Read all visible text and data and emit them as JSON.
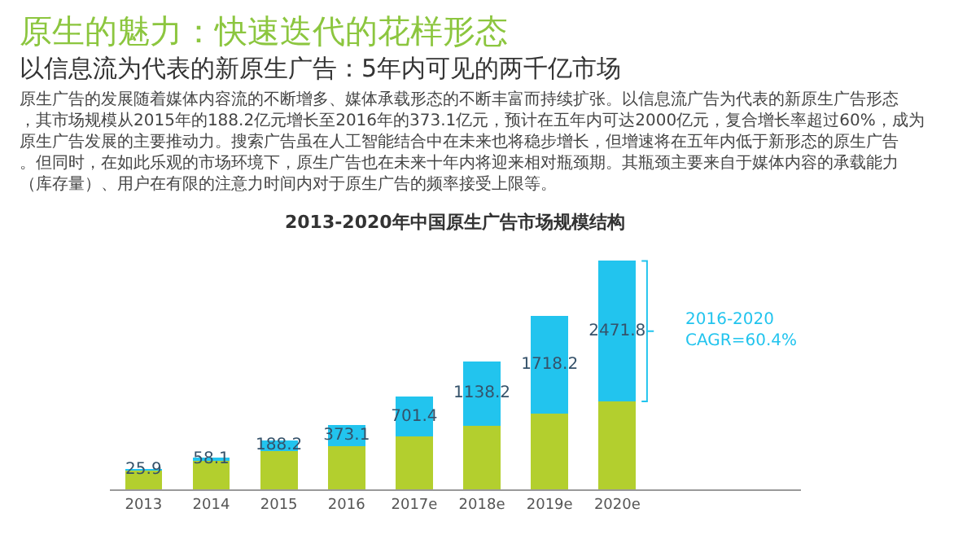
{
  "chart_data": {
    "type": "bar",
    "stacked": true,
    "title": "原生的魅力：快速迭代的花样形态",
    "subtitle": "以信息流为代表的新原生广告：5年内可见的两千亿市场",
    "annotations": [
      "原生广告的发展随着媒体内容流的不断增多、媒体承载形态的不断丰富而持续扩张。以信息流广告为代表的新原生广告形态，其市场规模从2015年的188.2亿元增长至2016年的373.1亿元，预计在五年内可达2000亿元，复合增长率超过60%，成为原生广告发展的主要推动力。搜索广告虽在人工智能结合中在未来也将稳步增长，但增速将在五年内低于新形态的原生广告。但同时，在如此乐观的市场环境下，原生广告也在未来十年内将迎来相对瓶颈期。其瓶颈主要来自于媒体内容的承载能力（库存量）、用户在有限的注意力时间内对于原生广告的频率接受上限等。",
      "2013-2020年中国原生广告市场规模结构",
      "2016-2020\nCAGR=60.4%"
    ],
    "categories": [
      "2013",
      "2014",
      "2015",
      "2016",
      "2017e",
      "2018e",
      "2019e",
      "2020e"
    ],
    "series": [
      {
        "color": "#b3cf2e",
        "values": [
          340,
          500,
          680,
          770,
          930,
          1120,
          1330,
          1550
        ]
      },
      {
        "color": "#22c4ee",
        "values": [
          25.9,
          58.1,
          188.2,
          373.1,
          701.4,
          1138.2,
          1718.2,
          2471.8
        ],
        "value_labels": [
          "25.9",
          "58.1",
          "188.2",
          "373.1",
          "701.4",
          "1138.2",
          "1718.2",
          "2471.8"
        ]
      }
    ]
  }
}
